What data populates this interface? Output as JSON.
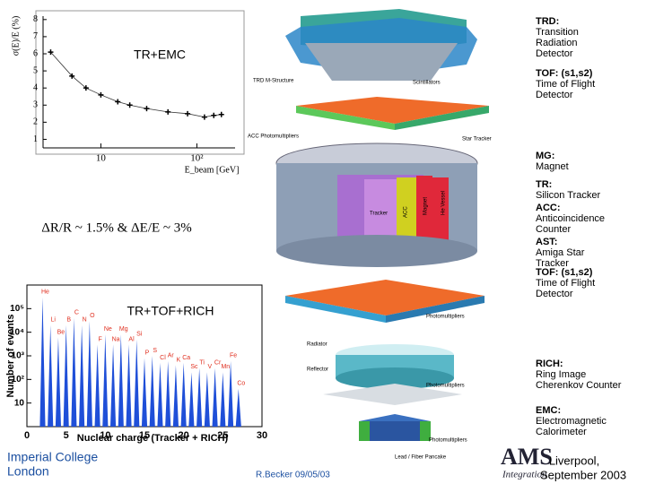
{
  "captions": {
    "emc": "TR+EMC",
    "resolution": "ΔR/R ~ 1.5% & ΔE/E ~ 3%",
    "tofrich": "TR+TOF+RICH"
  },
  "emc_plot": {
    "type": "scatter",
    "ylabel": "σ(E)/E (%)",
    "xlabel": "E_beam [GeV]",
    "x": [
      3,
      5,
      7,
      10,
      15,
      20,
      30,
      50,
      80,
      120,
      150,
      180
    ],
    "values": [
      6.1,
      4.7,
      4.0,
      3.6,
      3.2,
      3.0,
      2.8,
      2.6,
      2.5,
      2.3,
      2.4,
      2.45
    ],
    "xlim": [
      2.5,
      250
    ],
    "xlog": true,
    "xticks": [
      10,
      {
        "value": 100,
        "label": "10²"
      }
    ],
    "ylim": [
      0.5,
      8.2
    ],
    "yticks": [
      1,
      2,
      3,
      4,
      5,
      6,
      7,
      8
    ]
  },
  "charge_plot": {
    "type": "histogram",
    "ylabel": "Number of events",
    "xlabel": "Nuclear charge (Tracker + RICH)",
    "z": [
      2,
      3,
      4,
      5,
      6,
      7,
      8,
      9,
      10,
      11,
      12,
      13,
      14,
      15,
      16,
      17,
      18,
      19,
      20,
      21,
      22,
      23,
      24,
      25,
      26,
      27
    ],
    "values": [
      300000,
      20000,
      6000,
      20000,
      40000,
      20000,
      30000,
      3000,
      8000,
      3000,
      8000,
      3000,
      5000,
      800,
      1000,
      500,
      600,
      400,
      500,
      200,
      300,
      200,
      300,
      200,
      600,
      40
    ],
    "elements": [
      "He",
      "Li",
      "Be",
      "B",
      "C",
      "N",
      "O",
      "F",
      "Ne",
      "Na",
      "Mg",
      "Al",
      "Si",
      "P",
      "S",
      "Cl",
      "Ar",
      "K",
      "Ca",
      "Sc",
      "Ti",
      "V",
      "Cr",
      "Mn",
      "Fe",
      "Co"
    ],
    "xlim": [
      0,
      30
    ],
    "xticks": [
      0,
      5,
      10,
      15,
      20,
      25,
      30
    ],
    "ylim": [
      1,
      1000000
    ],
    "ylog": true,
    "yticks": [
      {
        "value": 10,
        "label": "10"
      },
      {
        "value": 100,
        "label": "10²"
      },
      {
        "value": 1000,
        "label": "10³"
      },
      {
        "value": 10000,
        "label": "10⁴"
      },
      {
        "value": 100000,
        "label": "10⁵"
      }
    ]
  },
  "detector_labels": [
    "TRD M-Structure",
    "Scintillators",
    "ACC Photomultipliers",
    "Star Tracker",
    "Tracker",
    "ACC",
    "Magnet",
    "He Vessel",
    "Photomultipliers",
    "Radiator",
    "Reflector",
    "Photomultipliers",
    "Lead / Fiber Pancake",
    "Photomultipliers"
  ],
  "legend": [
    {
      "name": "TRD:",
      "lines": [
        "Transition",
        "Radiation",
        "Detector"
      ]
    },
    {
      "name": "TOF: (s1,s2)",
      "lines": [
        "Time of Flight",
        "Detector"
      ]
    },
    {
      "name": "MG:",
      "lines": [
        "Magnet"
      ]
    },
    {
      "name": "TR:",
      "lines": [
        "Silicon Tracker"
      ]
    },
    {
      "name": "ACC:",
      "lines": [
        "Anticoincidence",
        "Counter"
      ]
    },
    {
      "name": "AST:",
      "lines": [
        "Amiga Star",
        "Tracker"
      ]
    },
    {
      "name": "TOF: (s1,s2)",
      "lines": [
        "Time of Flight",
        "Detector"
      ]
    },
    {
      "name": "RICH:",
      "lines": [
        "Ring Image",
        "Cherenkov Counter"
      ]
    },
    {
      "name": "EMC:",
      "lines": [
        "Electromagnetic",
        "Calorimeter"
      ]
    }
  ],
  "footer": {
    "institution": [
      "Imperial College",
      "London"
    ],
    "author": "R.Becker 09/05/03",
    "logo": "AMS",
    "logo_sub": "Integration",
    "event": [
      "Liverpool,",
      "September 2003"
    ]
  }
}
